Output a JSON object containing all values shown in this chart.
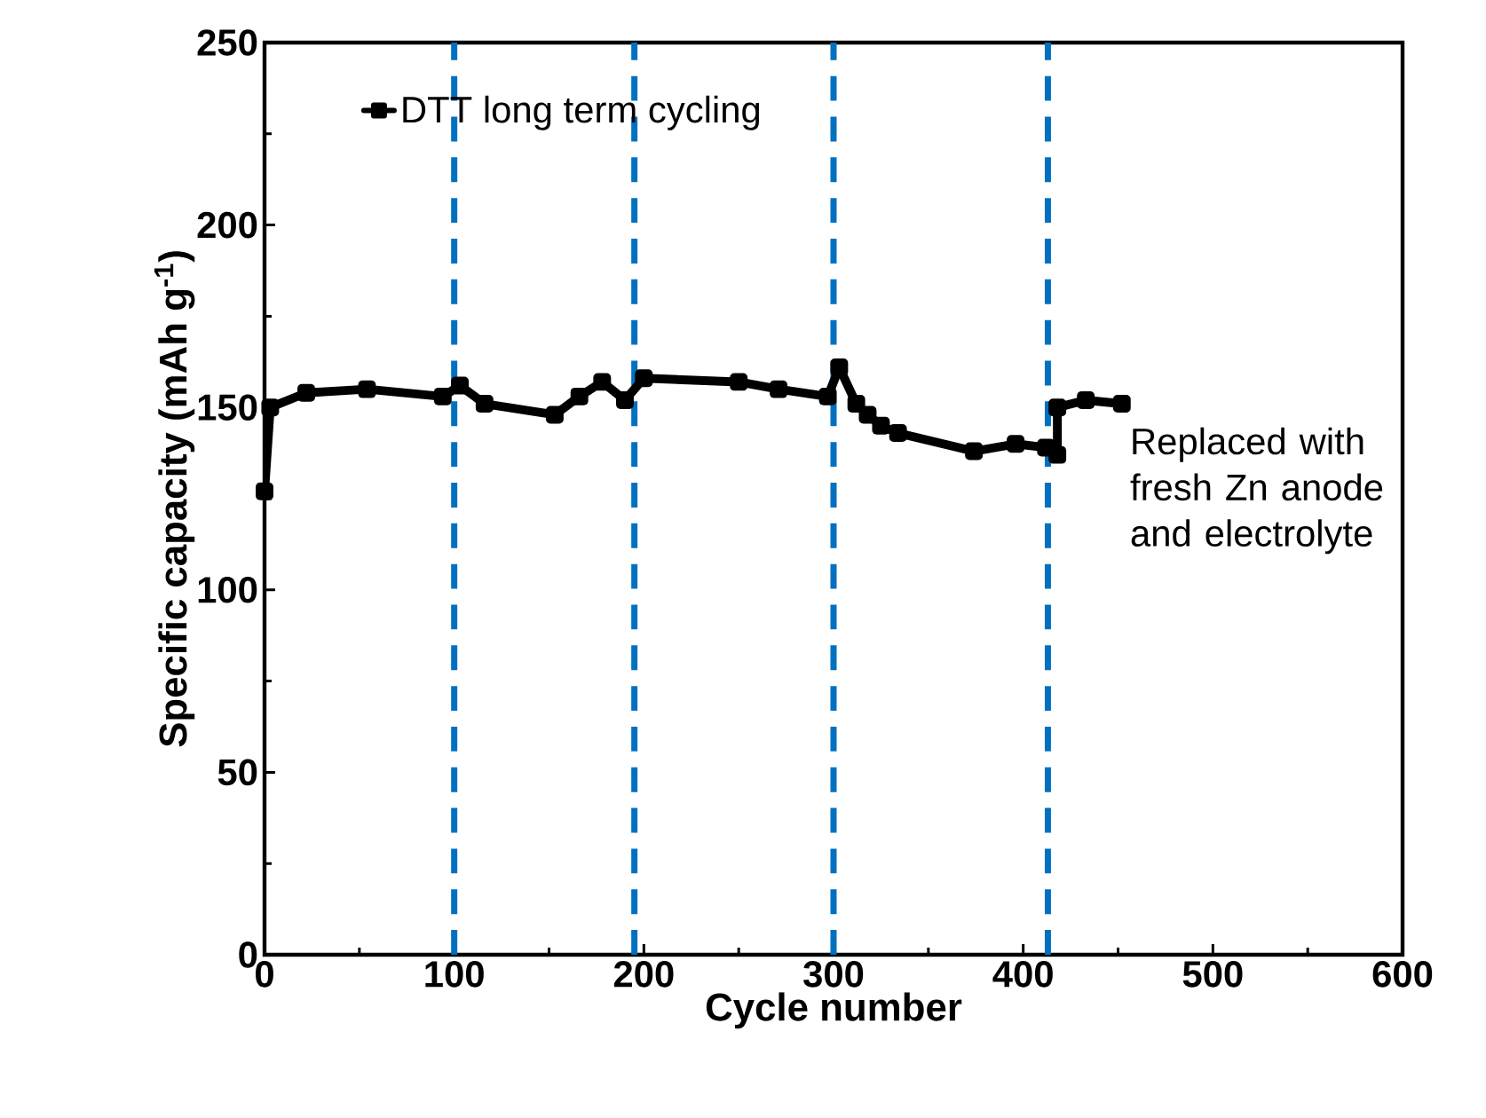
{
  "chart_data": {
    "type": "line",
    "xlabel": "Cycle number",
    "ylabel": "Specific capacity (mAh g$^{-1}$)",
    "xlim": [
      0,
      600
    ],
    "xticks": [
      0,
      100,
      200,
      300,
      400,
      500,
      600
    ],
    "ylim": [
      0,
      250
    ],
    "yticks": [
      0,
      50,
      100,
      150,
      200,
      250
    ],
    "legend": "top left",
    "marker": "square",
    "line_style": "solid",
    "series": [
      {
        "name": "DTT long term cycling",
        "color": "#000000",
        "x": [
          0,
          3,
          22,
          54,
          94,
          103,
          116,
          153,
          166,
          178,
          190,
          200,
          250,
          271,
          297,
          303,
          312,
          318,
          325,
          334,
          374,
          396,
          412,
          418,
          418,
          433,
          452
        ],
        "values": [
          127,
          150,
          154,
          155,
          153,
          156,
          151,
          148,
          153,
          157,
          152,
          158,
          157,
          155,
          153,
          161,
          151,
          148,
          145,
          143,
          138,
          140,
          139,
          137,
          150,
          152,
          151
        ]
      }
    ],
    "ref_lines": [
      {
        "axis": "x",
        "value": 100,
        "color": "#0070c0",
        "line_style": "dashed"
      },
      {
        "axis": "x",
        "value": 195,
        "color": "#0070c0",
        "line_style": "dashed"
      },
      {
        "axis": "x",
        "value": 300,
        "color": "#0070c0",
        "line_style": "dashed"
      },
      {
        "axis": "x",
        "value": 413,
        "color": "#0070c0",
        "line_style": "dashed"
      }
    ],
    "annotations": [
      "Replaced with fresh Zn anode and electrolyte"
    ]
  }
}
